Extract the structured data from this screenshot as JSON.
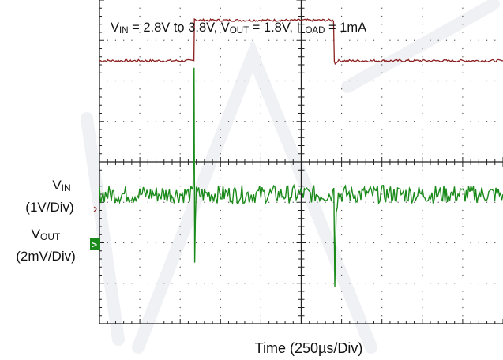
{
  "chart_data": {
    "type": "line",
    "title": "V_IN = 2.8V to 3.8V, V_OUT = 1.8V, I_LOAD = 1mA",
    "title_parts": {
      "vin_main": "V",
      "vin_sub": "IN",
      "vin_value": " = 2.8V to 3.8V, ",
      "vout_main": "V",
      "vout_sub": "OUT",
      "vout_value": " = 1.8V, ",
      "iload_main": "I",
      "iload_sub": "LOAD",
      "iload_value": " = 1mA"
    },
    "xlabel": "Time  (250µs/Div)",
    "x_divisions": 10,
    "y_divisions": 8,
    "x_unit": "µs",
    "x_per_div": 250,
    "grid": true,
    "xlim": [
      0,
      2500
    ],
    "series": [
      {
        "name": "VIN",
        "label_main": "V",
        "label_sub": "IN",
        "scale": "(1V/Div)",
        "marker": "›",
        "color": "#8b1f1f",
        "unit": "V",
        "v_per_div": 1,
        "y_ref": 2.8,
        "ref_div_from_top": 1.5,
        "x": [
          0,
          585,
          588,
          600,
          1450,
          1455,
          1460,
          1475,
          1490,
          2500
        ],
        "y": [
          2.8,
          2.8,
          3.86,
          3.8,
          3.8,
          2.8,
          2.72,
          2.8,
          2.8,
          2.8
        ]
      },
      {
        "name": "VOUT",
        "label_main": "V",
        "label_sub": "OUT",
        "scale": "(2mV/Div)",
        "marker": ">",
        "color": "#1a8a1a",
        "unit": "mV",
        "v_per_div": 2,
        "y_ref": 0,
        "ref_div_from_top": 4.8,
        "x": [
          0,
          580,
          586,
          590,
          594,
          600,
          700,
          1445,
          1452,
          1458,
          1466,
          1480,
          2500
        ],
        "y": [
          0,
          0,
          6.5,
          -3.2,
          -1.2,
          0,
          0,
          0,
          0.6,
          -4.2,
          -0.6,
          0,
          0
        ]
      }
    ]
  }
}
